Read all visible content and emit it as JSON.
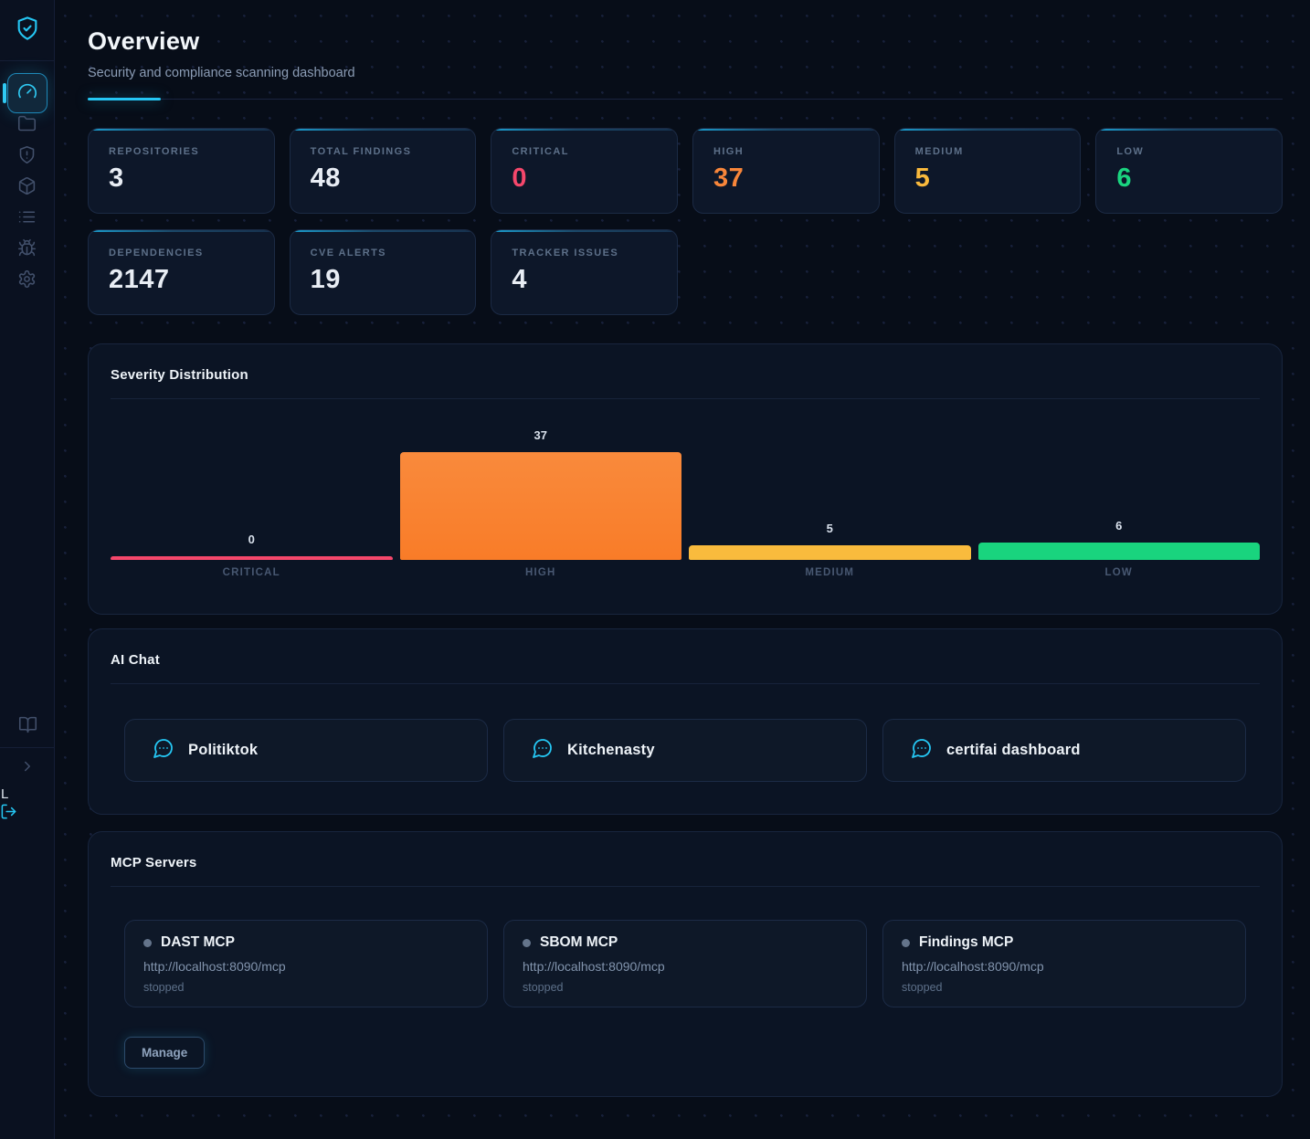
{
  "sidebar": {
    "logo_icon": "shield-check-icon",
    "nav": [
      {
        "name": "dashboard",
        "icon": "gauge-icon",
        "active": true
      },
      {
        "name": "repositories",
        "icon": "folder-icon",
        "active": false
      },
      {
        "name": "findings",
        "icon": "shield-alert-icon",
        "active": false
      },
      {
        "name": "dependencies",
        "icon": "package-icon",
        "active": false
      },
      {
        "name": "tracker",
        "icon": "list-icon",
        "active": false
      },
      {
        "name": "cve",
        "icon": "bug-icon",
        "active": false
      },
      {
        "name": "settings",
        "icon": "gear-icon",
        "active": false
      }
    ],
    "footer": {
      "docs_icon": "book-icon",
      "collapse_icon": "chevron-right-icon",
      "user_label": "L",
      "logout_icon": "logout-icon"
    }
  },
  "header": {
    "title": "Overview",
    "subtitle": "Security and compliance scanning dashboard"
  },
  "accent_color": "#25c7f4",
  "stats": [
    {
      "label": "REPOSITORIES",
      "value": "3",
      "color": "#e8edf4"
    },
    {
      "label": "TOTAL FINDINGS",
      "value": "48",
      "color": "#e8edf4"
    },
    {
      "label": "CRITICAL",
      "value": "0",
      "color": "#f5476b"
    },
    {
      "label": "HIGH",
      "value": "37",
      "color": "#f8863a"
    },
    {
      "label": "MEDIUM",
      "value": "5",
      "color": "#f9b93c"
    },
    {
      "label": "LOW",
      "value": "6",
      "color": "#1ad47f"
    },
    {
      "label": "DEPENDENCIES",
      "value": "2147",
      "color": "#e8edf4"
    },
    {
      "label": "CVE ALERTS",
      "value": "19",
      "color": "#e8edf4"
    },
    {
      "label": "TRACKER ISSUES",
      "value": "4",
      "color": "#e8edf4"
    }
  ],
  "chart_data": {
    "type": "bar",
    "title": "Severity Distribution",
    "categories": [
      "CRITICAL",
      "HIGH",
      "MEDIUM",
      "LOW"
    ],
    "values": [
      0,
      37,
      5,
      6
    ],
    "colors": [
      "#f5476b",
      "#f98a3c",
      "#f9bb3d",
      "#19d47e"
    ],
    "ylim": [
      0,
      37
    ],
    "grid": false,
    "legend": false,
    "value_labels": true
  },
  "ai_chat": {
    "title": "AI Chat",
    "chat_icon": "chat-bubble-icon",
    "chats": [
      {
        "name": "Politiktok"
      },
      {
        "name": "Kitchenasty"
      },
      {
        "name": "certifai dashboard"
      }
    ]
  },
  "mcp": {
    "title": "MCP Servers",
    "servers": [
      {
        "name": "DAST MCP",
        "url": "http://localhost:8090/mcp",
        "status": "stopped"
      },
      {
        "name": "SBOM MCP",
        "url": "http://localhost:8090/mcp",
        "status": "stopped"
      },
      {
        "name": "Findings MCP",
        "url": "http://localhost:8090/mcp",
        "status": "stopped"
      }
    ],
    "manage_label": "Manage"
  }
}
